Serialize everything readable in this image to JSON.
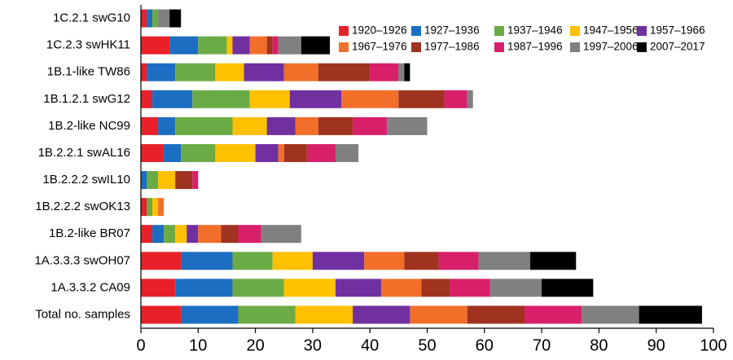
{
  "chart_data": {
    "type": "stacked-barh",
    "categories": [
      "1C.2.1 swG10",
      "1C.2.3 swHK11",
      "1B.1-like TW86",
      "1B.1.2.1 swG12",
      "1B.2-like NC99",
      "1B.2.2.1 swAL16",
      "1B.2.2.2 swIL10",
      "1B.2.2.2 swOK13",
      "1B.2-like BR07",
      "1A.3.3.3 swOH07",
      "1A.3.3.2 CA09",
      "Total no. samples"
    ],
    "series": [
      {
        "name": "1920–1926",
        "color": "#e8202a",
        "values": [
          1,
          5,
          1,
          2,
          3,
          4,
          0,
          1,
          2,
          7,
          6,
          7
        ]
      },
      {
        "name": "1927–1936",
        "color": "#1b6ec2",
        "values": [
          1,
          5,
          5,
          7,
          3,
          3,
          1,
          0,
          2,
          9,
          10,
          10
        ]
      },
      {
        "name": "1937–1946",
        "color": "#6aab45",
        "values": [
          1,
          5,
          7,
          10,
          10,
          6,
          2,
          1,
          2,
          7,
          9,
          10
        ]
      },
      {
        "name": "1947–1956",
        "color": "#ffc000",
        "values": [
          0,
          1,
          5,
          7,
          6,
          7,
          3,
          1,
          2,
          7,
          9,
          10
        ]
      },
      {
        "name": "1957–1966",
        "color": "#7030a0",
        "values": [
          0,
          3,
          7,
          9,
          5,
          4,
          0,
          0,
          2,
          9,
          8,
          10
        ]
      },
      {
        "name": "1967–1976",
        "color": "#f26f2a",
        "values": [
          0,
          3,
          6,
          10,
          4,
          1,
          0,
          1,
          4,
          7,
          7,
          10
        ]
      },
      {
        "name": "1977–1986",
        "color": "#a0331f",
        "values": [
          0,
          1,
          9,
          8,
          6,
          4,
          3,
          0,
          3,
          6,
          5,
          10
        ]
      },
      {
        "name": "1987–1996",
        "color": "#d81f6a",
        "values": [
          0,
          1,
          5,
          4,
          6,
          5,
          1,
          0,
          4,
          7,
          7,
          10
        ]
      },
      {
        "name": "1997–2006",
        "color": "#808080",
        "values": [
          2,
          4,
          1,
          1,
          7,
          4,
          0,
          0,
          7,
          9,
          9,
          10
        ]
      },
      {
        "name": "2007–2017",
        "color": "#000000",
        "values": [
          2,
          5,
          1,
          0,
          0,
          0,
          0,
          0,
          0,
          8,
          9,
          11
        ]
      }
    ],
    "xlim": [
      0,
      100
    ],
    "xticks": [
      0,
      10,
      20,
      30,
      40,
      50,
      60,
      70,
      80,
      90,
      100
    ],
    "legend": "top-right",
    "grid": false
  }
}
